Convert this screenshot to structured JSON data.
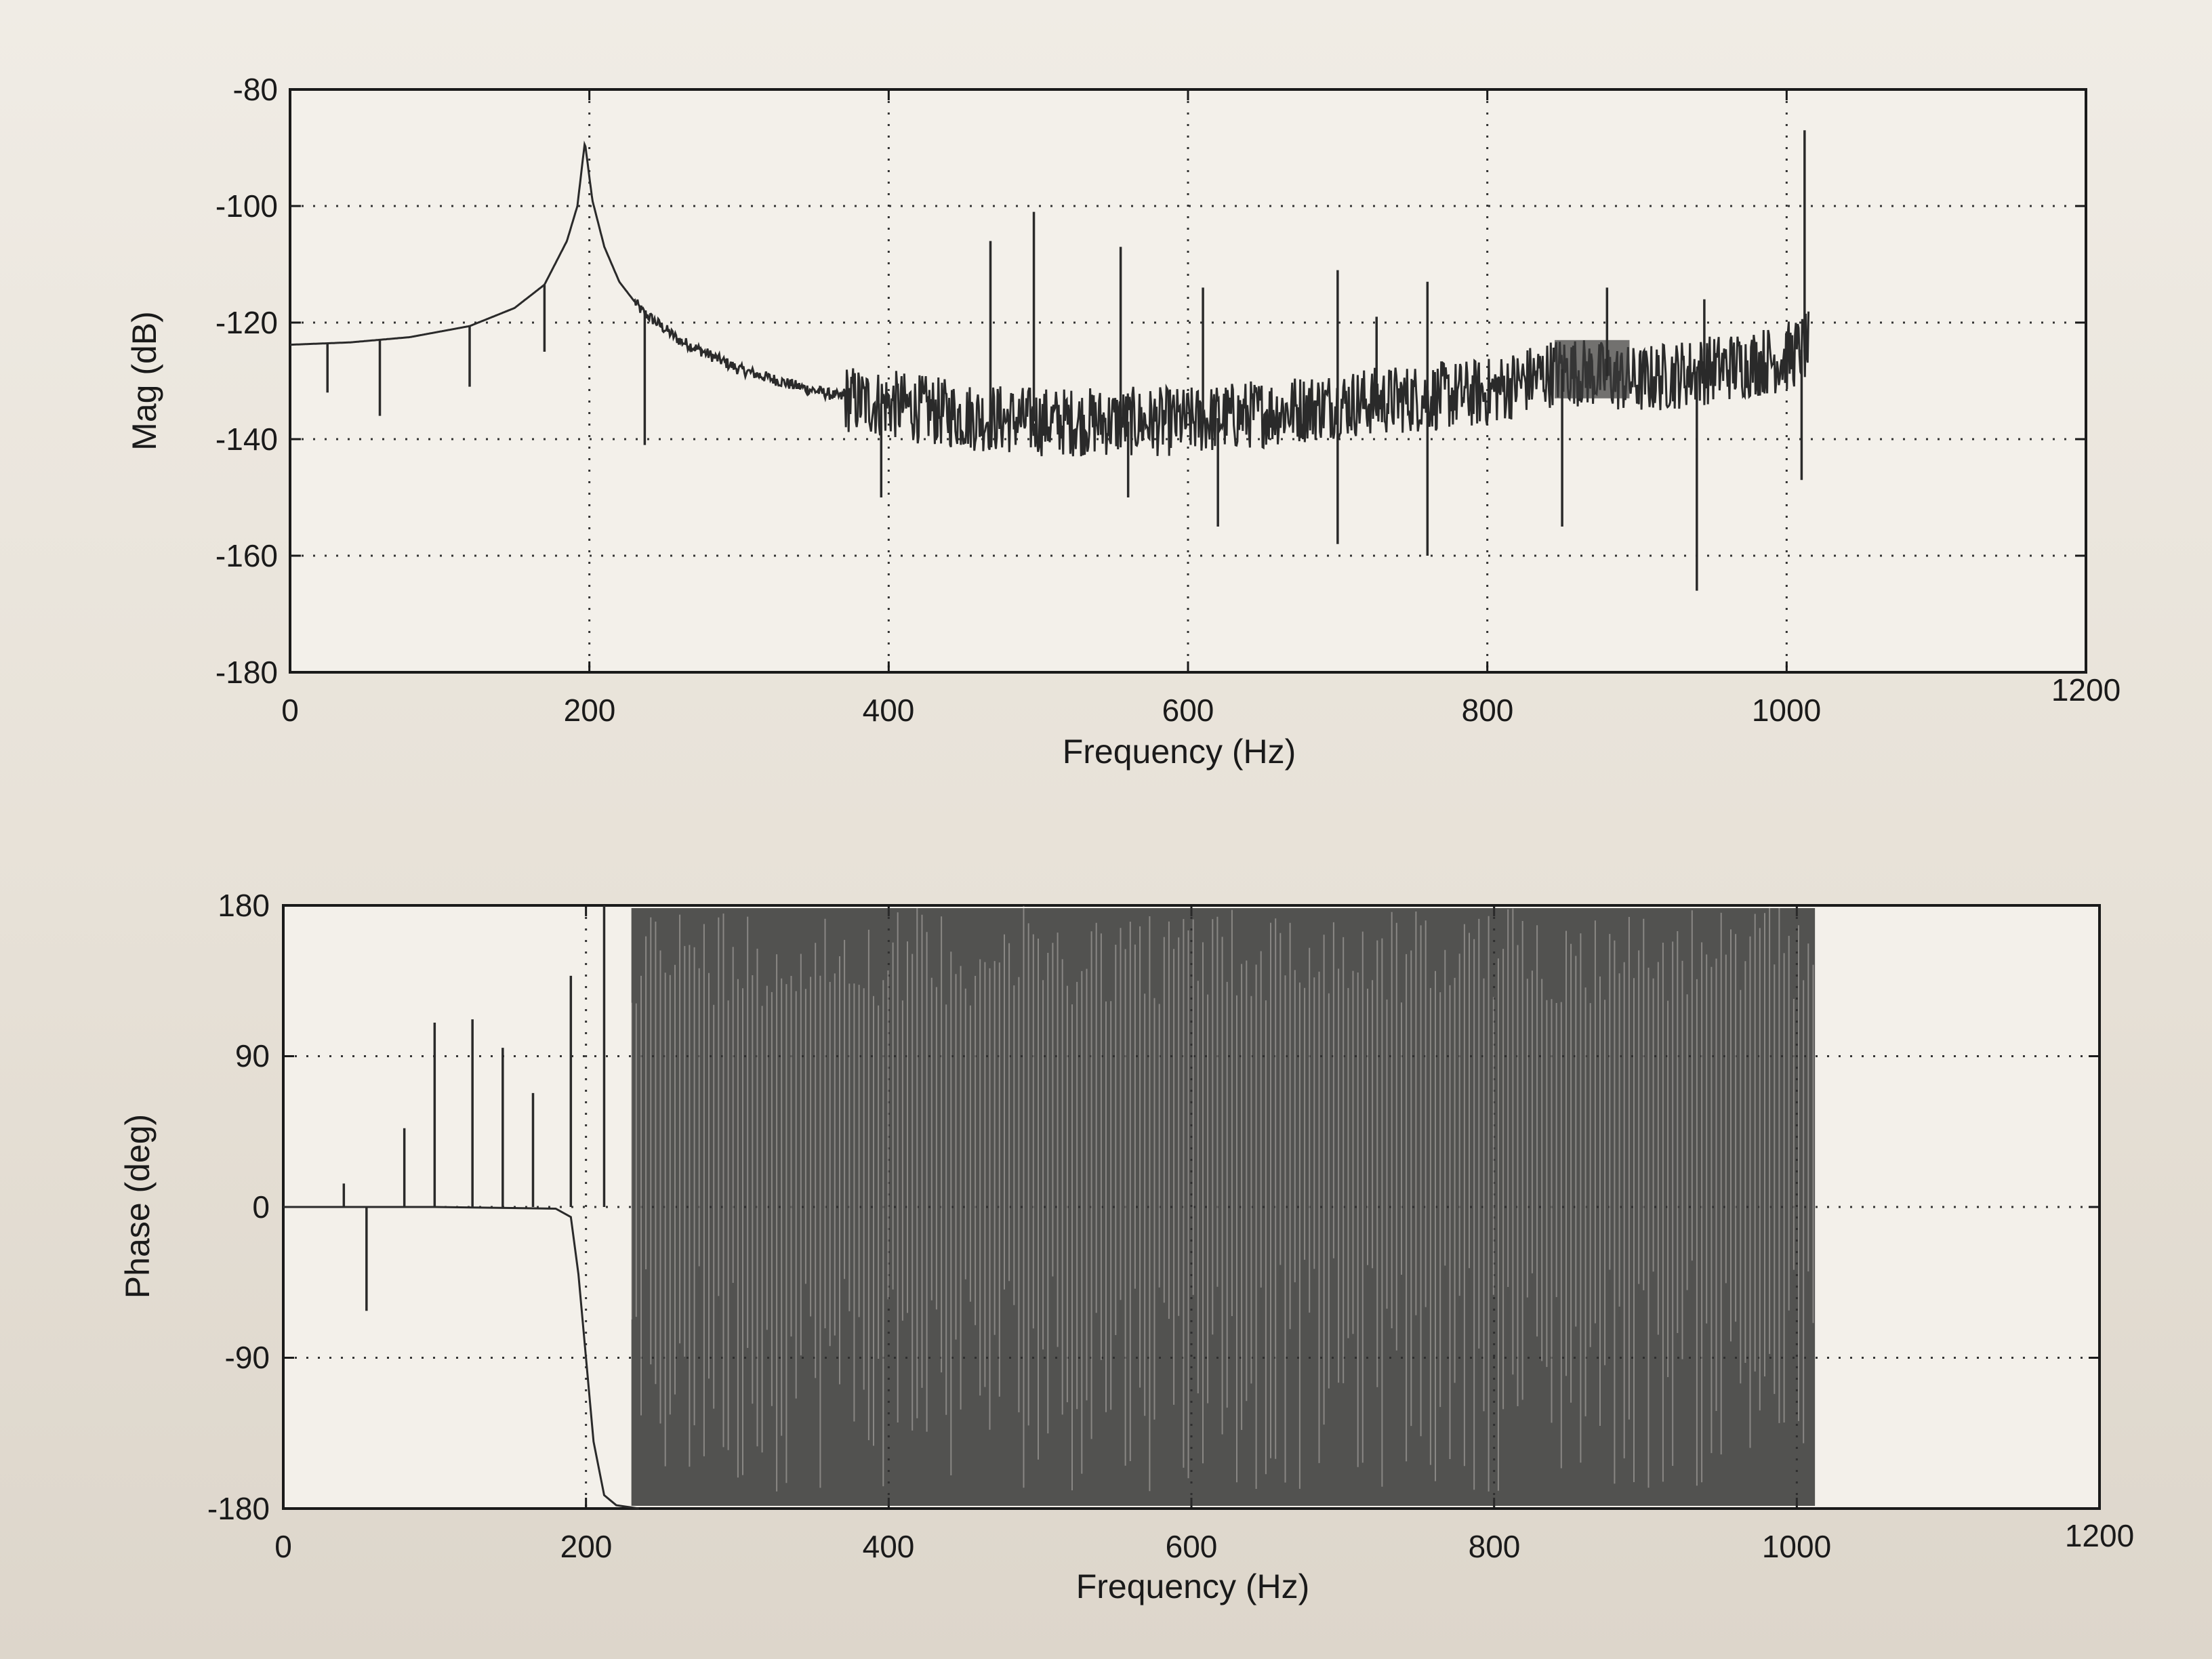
{
  "chart_data": [
    {
      "type": "line",
      "title": "",
      "xlabel": "Frequency (Hz)",
      "ylabel": "Mag (dB)",
      "xlim": [
        0,
        1200
      ],
      "ylim": [
        -180,
        -80
      ],
      "xticks": [
        0,
        200,
        400,
        600,
        800,
        1000,
        1200
      ],
      "yticks": [
        -80,
        -100,
        -120,
        -140,
        -160,
        -180
      ],
      "grid": true,
      "series": [
        {
          "points": [
            [
              0,
              -123.8
            ],
            [
              40,
              -123.4
            ],
            [
              80,
              -122.5
            ],
            [
              120,
              -120.6
            ],
            [
              150,
              -117.5
            ],
            [
              170,
              -113.5
            ],
            [
              185,
              -106
            ],
            [
              192,
              -100
            ],
            [
              197,
              -89
            ],
            [
              202,
              -99
            ],
            [
              210,
              -107
            ],
            [
              220,
              -113
            ],
            [
              235,
              -118
            ],
            [
              260,
              -123
            ],
            [
              300,
              -128
            ],
            [
              340,
              -131
            ],
            [
              380,
              -133.5
            ],
            [
              400,
              -134
            ],
            [
              450,
              -136
            ],
            [
              500,
              -137
            ],
            [
              600,
              -137
            ],
            [
              700,
              -134
            ],
            [
              800,
              -132
            ],
            [
              850,
              -128
            ],
            [
              900,
              -130
            ],
            [
              1000,
              -126
            ],
            [
              1015,
              -124
            ]
          ],
          "spikes_up": [
            [
              468,
              -106
            ],
            [
              497,
              -101
            ],
            [
              555,
              -107
            ],
            [
              610,
              -114
            ],
            [
              700,
              -111
            ],
            [
              726,
              -119
            ],
            [
              760,
              -113
            ],
            [
              880,
              -114
            ],
            [
              945,
              -116
            ],
            [
              1012,
              -87
            ]
          ],
          "spikes_down": [
            [
              25,
              -132
            ],
            [
              60,
              -136
            ],
            [
              120,
              -131
            ],
            [
              170,
              -125
            ],
            [
              237,
              -141
            ],
            [
              395,
              -150
            ],
            [
              560,
              -150
            ],
            [
              620,
              -155
            ],
            [
              700,
              -158
            ],
            [
              760,
              -160
            ],
            [
              850,
              -155
            ],
            [
              940,
              -166
            ],
            [
              1010,
              -147
            ]
          ]
        }
      ]
    },
    {
      "type": "line",
      "title": "",
      "xlabel": "Frequency (Hz)",
      "ylabel": "Phase (deg)",
      "xlim": [
        0,
        1200
      ],
      "ylim": [
        -180,
        180
      ],
      "xticks": [
        0,
        200,
        400,
        600,
        800,
        1000,
        1200
      ],
      "yticks": [
        180,
        90,
        0,
        -90,
        -180
      ],
      "grid": true,
      "series": [
        {
          "points": [
            [
              0,
              0
            ],
            [
              100,
              0
            ],
            [
              180,
              -1
            ],
            [
              190,
              -6
            ],
            [
              195,
              -40
            ],
            [
              200,
              -90
            ],
            [
              205,
              -140
            ],
            [
              212,
              -172
            ],
            [
              220,
              -178
            ],
            [
              235,
              -180
            ]
          ],
          "spikes_up": [
            [
              40,
              14
            ],
            [
              80,
              47
            ],
            [
              100,
              110
            ],
            [
              125,
              112
            ],
            [
              145,
              95
            ],
            [
              165,
              68
            ],
            [
              190,
              138
            ],
            [
              212,
              180
            ]
          ],
          "spikes_down": [
            [
              55,
              -62
            ]
          ],
          "noise_band": [
            230,
            1012
          ]
        }
      ]
    }
  ]
}
